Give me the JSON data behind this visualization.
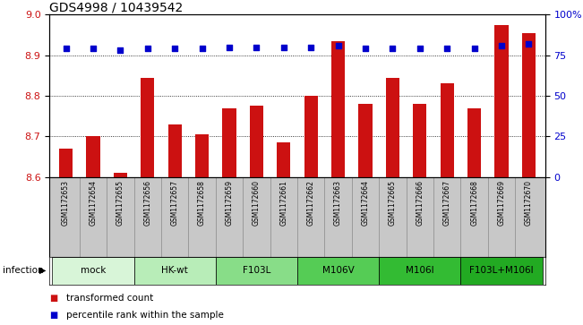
{
  "title": "GDS4998 / 10439542",
  "samples": [
    "GSM1172653",
    "GSM1172654",
    "GSM1172655",
    "GSM1172656",
    "GSM1172657",
    "GSM1172658",
    "GSM1172659",
    "GSM1172660",
    "GSM1172661",
    "GSM1172662",
    "GSM1172663",
    "GSM1172664",
    "GSM1172665",
    "GSM1172666",
    "GSM1172667",
    "GSM1172668",
    "GSM1172669",
    "GSM1172670"
  ],
  "transformed_counts": [
    8.67,
    8.7,
    8.61,
    8.845,
    8.73,
    8.705,
    8.77,
    8.775,
    8.685,
    8.8,
    8.935,
    8.78,
    8.845,
    8.78,
    8.83,
    8.77,
    8.975,
    8.955
  ],
  "percentile_ranks": [
    79,
    79,
    78,
    79,
    79,
    79,
    80,
    80,
    80,
    80,
    81,
    79,
    79,
    79,
    79,
    79,
    81,
    82
  ],
  "groups": [
    {
      "label": "mock",
      "start": 0,
      "end": 3,
      "color": "#d8f5d8"
    },
    {
      "label": "HK-wt",
      "start": 3,
      "end": 6,
      "color": "#b8edb8"
    },
    {
      "label": "F103L",
      "start": 6,
      "end": 9,
      "color": "#88dd88"
    },
    {
      "label": "M106V",
      "start": 9,
      "end": 12,
      "color": "#55cc55"
    },
    {
      "label": "M106I",
      "start": 12,
      "end": 15,
      "color": "#33bb33"
    },
    {
      "label": "F103L+M106I",
      "start": 15,
      "end": 18,
      "color": "#22aa22"
    }
  ],
  "bar_color": "#cc1111",
  "dot_color": "#0000cc",
  "ylim_left": [
    8.6,
    9.0
  ],
  "ylim_right": [
    0,
    100
  ],
  "yticks_left": [
    8.6,
    8.7,
    8.8,
    8.9,
    9.0
  ],
  "yticks_right": [
    0,
    25,
    50,
    75,
    100
  ],
  "gridlines": [
    8.7,
    8.8,
    8.9
  ],
  "infection_label": "infection",
  "legend_bar_label": "transformed count",
  "legend_dot_label": "percentile rank within the sample",
  "bar_width": 0.5,
  "sample_label_bg": "#c8c8c8",
  "sample_label_fontsize": 5.5,
  "main_fontsize": 8,
  "title_fontsize": 10
}
